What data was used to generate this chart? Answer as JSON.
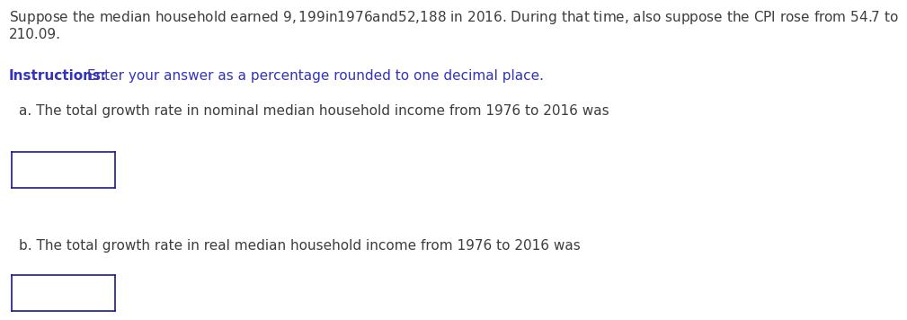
{
  "background_color": "#ffffff",
  "intro_line1": "Suppose the median household earned $9,199 in 1976 and $52,188 in 2016. During that time, also suppose the CPI rose from 54.7 to",
  "intro_line2": "210.09.",
  "instructions_bold": "Instructions:",
  "instructions_rest": " Enter your answer as a percentage rounded to one decimal place.",
  "instructions_color": "#3333bb",
  "question_a": "a. The total growth rate in nominal median household income from 1976 to 2016 was",
  "question_b": "b. The total growth rate in real median household income from 1976 to 2016 was",
  "text_color": "#3d3d3d",
  "box_edge_color": "#1a1a8c",
  "font_size": 11.0
}
